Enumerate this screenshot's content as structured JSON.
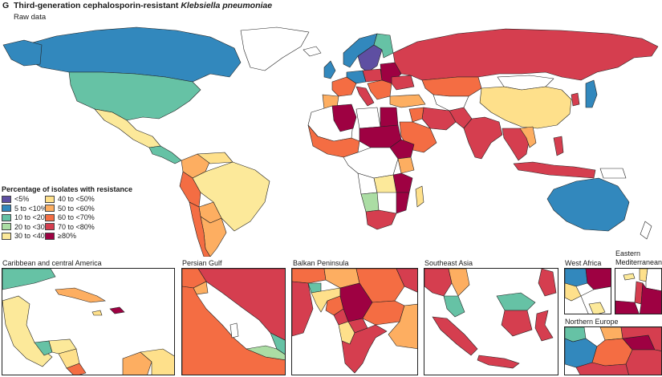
{
  "panel_letter": "G",
  "title_prefix": "Third-generation cephalosporin-resistant",
  "title_organism": "Klebsiella pneumoniae",
  "subtitle": "Raw data",
  "legend": {
    "title": "Percentage of isolates with resistance",
    "items": [
      {
        "label": "<5%",
        "color": "#5e4fa2"
      },
      {
        "label": "40 to <50%",
        "color": "#fee08b"
      },
      {
        "label": "5 to <10%",
        "color": "#3288bd"
      },
      {
        "label": "50 to <60%",
        "color": "#fdae61"
      },
      {
        "label": "10 to <20%",
        "color": "#66c2a5"
      },
      {
        "label": "60 to <70%",
        "color": "#f46d43"
      },
      {
        "label": "20 to <30%",
        "color": "#abdda4"
      },
      {
        "label": "70 to <80%",
        "color": "#d53e4f"
      },
      {
        "label": "30 to <40%",
        "color": "#fce99a"
      },
      {
        "label": "≥80%",
        "color": "#9e0142"
      }
    ]
  },
  "insets": {
    "caribbean": "Caribbean and central America",
    "persian_gulf": "Persian Gulf",
    "balkan": "Balkan Peninsula",
    "southeast_asia": "Southeast Asia",
    "west_africa": "West Africa",
    "eastern_med": "Eastern Mediterranean",
    "northern_europe": "Northern Europe"
  }
}
